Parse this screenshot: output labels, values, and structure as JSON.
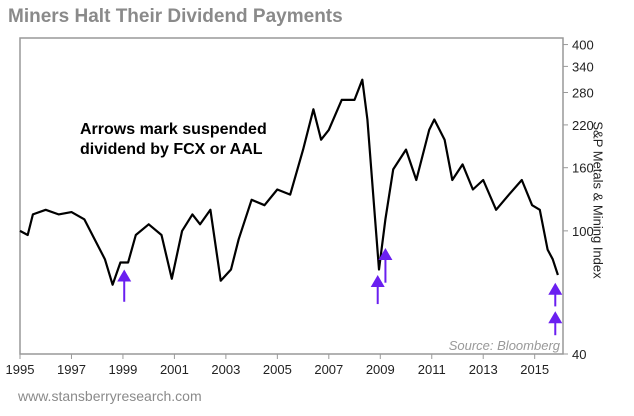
{
  "chart_data": {
    "type": "line",
    "title": "Miners Halt Their Dividend Payments",
    "xlabel": "",
    "ylabel": "S&P Metals & Mining Index",
    "yscale": "log",
    "xlim": [
      1995,
      2016.1
    ],
    "ylim": [
      40,
      420
    ],
    "xticks": [
      "1995",
      "1997",
      "1999",
      "2001",
      "2003",
      "2005",
      "2007",
      "2009",
      "2011",
      "2013",
      "2015"
    ],
    "yticks": [
      40,
      100,
      160,
      220,
      280,
      340,
      400
    ],
    "grid": false,
    "annotation": "Arrows mark suspended dividend by FCX or AAL",
    "annotation_lines": [
      "Arrows mark suspended",
      "dividend by FCX or AAL"
    ],
    "source": "Source: Bloomberg",
    "arrow_color": "#6a1ff0",
    "line_color": "#000000",
    "arrows": [
      {
        "year": 1999.05,
        "tip": 75,
        "tail": 59
      },
      {
        "year": 2008.9,
        "tip": 72,
        "tail": 58
      },
      {
        "year": 2009.2,
        "tip": 88,
        "tail": 68
      },
      {
        "year": 2015.8,
        "tip": 68,
        "tail": 57
      },
      {
        "year": 2015.8,
        "tip": 55,
        "tail": 46
      }
    ],
    "series": [
      {
        "name": "S&P Metals & Mining Index",
        "x": [
          1995.0,
          1995.3,
          1995.5,
          1996.0,
          1996.5,
          1997.0,
          1997.5,
          1997.9,
          1998.3,
          1998.6,
          1998.9,
          1999.2,
          1999.5,
          2000.0,
          2000.5,
          2000.9,
          2001.3,
          2001.7,
          2002.0,
          2002.4,
          2002.8,
          2003.2,
          2003.5,
          2004.0,
          2004.5,
          2005.0,
          2005.5,
          2006.0,
          2006.4,
          2006.7,
          2007.0,
          2007.5,
          2008.0,
          2008.3,
          2008.5,
          2008.8,
          2008.95,
          2009.2,
          2009.5,
          2010.0,
          2010.4,
          2010.9,
          2011.1,
          2011.5,
          2011.8,
          2012.2,
          2012.6,
          2013.0,
          2013.5,
          2014.0,
          2014.5,
          2014.9,
          2015.2,
          2015.5,
          2015.7,
          2015.9
        ],
        "values": [
          100,
          97,
          113,
          117,
          113,
          115,
          109,
          94,
          81,
          67,
          79,
          79,
          97,
          105,
          97,
          70,
          100,
          113,
          105,
          117,
          69,
          75,
          94,
          126,
          121,
          136,
          131,
          183,
          247,
          197,
          212,
          265,
          265,
          308,
          229,
          109,
          75,
          109,
          158,
          183,
          146,
          212,
          229,
          197,
          146,
          164,
          136,
          146,
          117,
          131,
          146,
          121,
          117,
          87,
          81,
          72
        ]
      }
    ]
  },
  "footer": "www.stansberryresearch.com"
}
